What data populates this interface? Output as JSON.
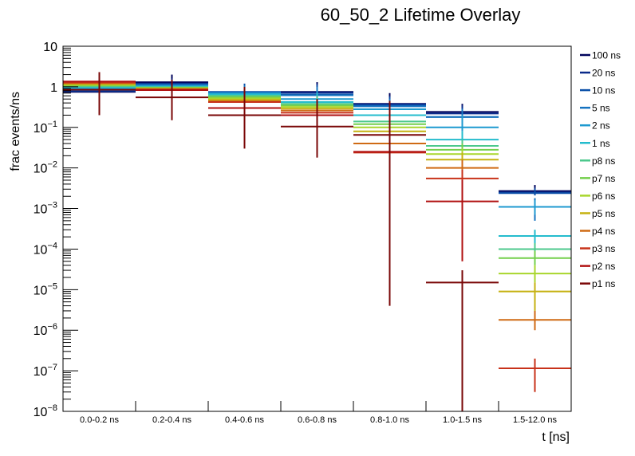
{
  "chart_data": {
    "type": "line",
    "subtype": "step-histogram-overlay-with-error-bars",
    "title": "60_50_2 Lifetime Overlay",
    "xlabel": "t [ns]",
    "ylabel": "frac events/ns",
    "yscale": "log",
    "ylim": [
      1e-08,
      10
    ],
    "yticks": [
      {
        "value": 10,
        "base": "10",
        "exp": ""
      },
      {
        "value": 1,
        "base": "1",
        "exp": ""
      },
      {
        "value": 0.1,
        "base": "10",
        "exp": "−1"
      },
      {
        "value": 0.01,
        "base": "10",
        "exp": "−2"
      },
      {
        "value": 0.001,
        "base": "10",
        "exp": "−3"
      },
      {
        "value": 0.0001,
        "base": "10",
        "exp": "−4"
      },
      {
        "value": 1e-05,
        "base": "10",
        "exp": "−5"
      },
      {
        "value": 1e-06,
        "base": "10",
        "exp": "−6"
      },
      {
        "value": 1e-07,
        "base": "10",
        "exp": "−7"
      },
      {
        "value": 1e-08,
        "base": "10",
        "exp": "−8"
      }
    ],
    "categories": [
      "0.0-0.2 ns",
      "0.2-0.4 ns",
      "0.4-0.6 ns",
      "0.6-0.8 ns",
      "0.8-1.0 ns",
      "1.0-1.5 ns",
      "1.5-12.0 ns"
    ],
    "grid": false,
    "legend": "right",
    "series": [
      {
        "name": "100 ns",
        "color": "#00035b",
        "values": [
          0.75,
          1.3,
          null,
          0.75,
          0.38,
          0.24,
          0.0027
        ],
        "errors": [
          [
            0.73,
            0.77
          ],
          [
            1.2,
            2.0
          ],
          [
            null,
            null
          ],
          [
            0.7,
            1.3
          ],
          [
            0.36,
            0.7
          ],
          [
            0.22,
            0.38
          ],
          [
            0.0024,
            0.0038
          ]
        ]
      },
      {
        "name": "20 ns",
        "color": "#0a2a8a",
        "values": [
          0.78,
          1.2,
          null,
          0.72,
          0.37,
          0.22,
          0.0025
        ],
        "errors": [
          [
            0.75,
            0.8
          ],
          [
            1.1,
            1.6
          ],
          [
            null,
            null
          ],
          [
            0.7,
            1.2
          ],
          [
            0.35,
            0.6
          ],
          [
            0.2,
            0.35
          ],
          [
            0.0022,
            0.0033
          ]
        ]
      },
      {
        "name": "10 ns",
        "color": "#0b4fa8",
        "values": [
          0.82,
          1.15,
          0.75,
          0.65,
          0.35,
          0.18,
          0.0024
        ],
        "errors": [
          [
            0.8,
            0.85
          ],
          [
            1.1,
            1.4
          ],
          [
            0.72,
            1.2
          ],
          [
            0.6,
            1.1
          ],
          [
            0.33,
            0.55
          ],
          [
            0.16,
            0.3
          ],
          [
            0.0021,
            0.0031
          ]
        ]
      },
      {
        "name": "5 ns",
        "color": "#1573c0",
        "values": [
          0.87,
          1.1,
          0.72,
          0.62,
          0.33,
          0.18,
          0.0011
        ],
        "errors": [
          [
            0.85,
            0.9
          ],
          [
            1.05,
            1.3
          ],
          [
            0.7,
            1.1
          ],
          [
            0.58,
            1.0
          ],
          [
            0.3,
            0.5
          ],
          [
            0.16,
            0.28
          ],
          [
            0.0005,
            0.0018
          ]
        ]
      },
      {
        "name": "2 ns",
        "color": "#1e9ad0",
        "values": [
          0.93,
          1.05,
          0.68,
          0.5,
          0.28,
          0.1,
          0.0011
        ],
        "errors": [
          [
            0.9,
            0.96
          ],
          [
            1.0,
            1.2
          ],
          [
            0.65,
            1.0
          ],
          [
            0.45,
            0.8
          ],
          [
            0.25,
            0.45
          ],
          [
            0.08,
            0.2
          ],
          [
            0.0007,
            0.0016
          ]
        ]
      },
      {
        "name": "1 ns",
        "color": "#24bccd",
        "values": [
          0.98,
          1.0,
          0.65,
          0.42,
          0.2,
          0.05,
          0.00021
        ],
        "errors": [
          [
            0.95,
            1.0
          ],
          [
            0.98,
            1.1
          ],
          [
            0.6,
            0.9
          ],
          [
            0.38,
            0.7
          ],
          [
            0.17,
            0.35
          ],
          [
            0.04,
            0.08
          ],
          [
            0.00013,
            0.0003
          ]
        ]
      },
      {
        "name": "p8 ns",
        "color": "#4cc88c",
        "values": [
          1.03,
          0.98,
          0.6,
          0.38,
          0.14,
          0.035,
          0.0001
        ],
        "errors": [
          [
            1.0,
            1.05
          ],
          [
            0.95,
            1.05
          ],
          [
            0.55,
            0.8
          ],
          [
            0.34,
            0.6
          ],
          [
            0.12,
            0.25
          ],
          [
            0.03,
            0.05
          ],
          [
            7e-05,
            0.00014
          ]
        ]
      },
      {
        "name": "p7 ns",
        "color": "#73cf4c",
        "values": [
          1.08,
          0.95,
          0.56,
          0.35,
          0.12,
          0.028,
          6e-05
        ],
        "errors": [
          [
            1.05,
            1.1
          ],
          [
            0.92,
            1.0
          ],
          [
            0.5,
            0.7
          ],
          [
            0.3,
            0.5
          ],
          [
            0.1,
            0.2
          ],
          [
            0.024,
            0.04
          ],
          [
            4e-05,
            9e-05
          ]
        ]
      },
      {
        "name": "p6 ns",
        "color": "#a8d62c",
        "values": [
          1.12,
          0.92,
          0.52,
          0.32,
          0.1,
          0.022,
          2.5e-05
        ],
        "errors": [
          [
            1.1,
            1.15
          ],
          [
            0.9,
            0.98
          ],
          [
            0.48,
            0.65
          ],
          [
            0.28,
            0.45
          ],
          [
            0.09,
            0.15
          ],
          [
            0.018,
            0.03
          ],
          [
            1.5e-05,
            4e-05
          ]
        ]
      },
      {
        "name": "p5 ns",
        "color": "#c6b212",
        "values": [
          1.17,
          0.9,
          0.48,
          0.29,
          0.08,
          0.016,
          9e-06
        ],
        "errors": [
          [
            1.15,
            1.2
          ],
          [
            0.88,
            0.95
          ],
          [
            0.44,
            0.6
          ],
          [
            0.25,
            0.4
          ],
          [
            0.06,
            0.12
          ],
          [
            0.012,
            0.024
          ],
          [
            3e-06,
            1.5e-05
          ]
        ]
      },
      {
        "name": "p4 ns",
        "color": "#cf6a14",
        "values": [
          1.22,
          0.88,
          0.44,
          0.26,
          0.04,
          0.01,
          1.8e-06
        ],
        "errors": [
          [
            1.2,
            1.25
          ],
          [
            0.85,
            0.92
          ],
          [
            0.4,
            0.55
          ],
          [
            0.22,
            0.35
          ],
          [
            0.03,
            0.06
          ],
          [
            0.007,
            0.016
          ],
          [
            1e-06,
            3e-06
          ]
        ]
      },
      {
        "name": "p3 ns",
        "color": "#c8321a",
        "values": [
          1.28,
          0.86,
          0.42,
          0.23,
          0.024,
          0.0055,
          1.15e-07
        ],
        "errors": [
          [
            1.25,
            1.3
          ],
          [
            0.83,
            0.9
          ],
          [
            0.38,
            0.5
          ],
          [
            0.2,
            0.3
          ],
          [
            0.018,
            0.035
          ],
          [
            0.003,
            0.009
          ],
          [
            3e-08,
            2e-07
          ]
        ]
      },
      {
        "name": "p2 ns",
        "color": "#b01010",
        "values": [
          1.35,
          0.83,
          0.3,
          0.2,
          0.025,
          0.0015,
          null
        ],
        "errors": [
          [
            0.8,
            2.3
          ],
          [
            0.6,
            1.3
          ],
          [
            0.25,
            0.4
          ],
          [
            0.15,
            0.3
          ],
          [
            0.01,
            0.1
          ],
          [
            5e-05,
            0.005
          ],
          [
            null,
            null
          ]
        ]
      },
      {
        "name": "p1 ns",
        "color": "#7a0707",
        "values": [
          0.85,
          0.55,
          0.2,
          0.105,
          0.065,
          1.5e-05,
          null
        ],
        "errors": [
          [
            0.2,
            2.3
          ],
          [
            0.15,
            1.5
          ],
          [
            0.03,
            1.0
          ],
          [
            0.018,
            0.5
          ],
          [
            4e-06,
            0.45
          ],
          [
            1e-08,
            3e-05
          ],
          [
            null,
            null
          ]
        ]
      }
    ]
  }
}
